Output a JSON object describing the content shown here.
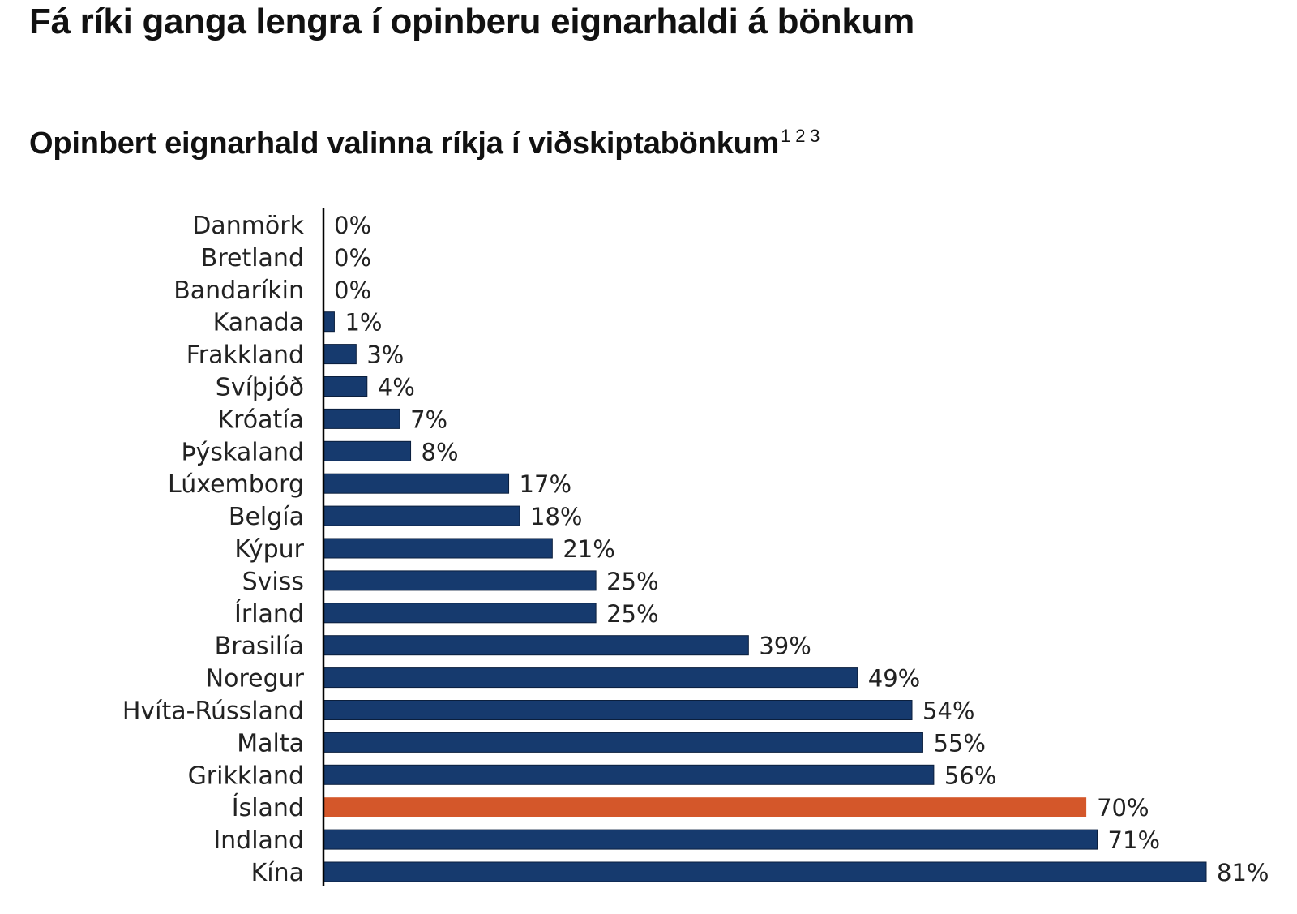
{
  "title": "Fá ríki ganga lengra í opinberu eignarhaldi á bönkum",
  "subtitle": "Opinbert eignarhald valinna ríkja í viðskiptabönkum",
  "subtitle_footnotes": "1 2 3",
  "colors": {
    "bar": "#163a6e",
    "highlight": "#d4572a",
    "axis": "#000000",
    "text": "#222222"
  },
  "chart_data": {
    "type": "bar",
    "orientation": "horizontal",
    "title": "Opinbert eignarhald valinna ríkja í viðskiptabönkum",
    "xlabel": "",
    "ylabel": "",
    "unit": "%",
    "xlim": [
      0,
      81
    ],
    "grid": false,
    "legend": "none",
    "highlight_category": "Ísland",
    "categories": [
      "Danmörk",
      "Bretland",
      "Bandaríkin",
      "Kanada",
      "Frakkland",
      "Svíþjóð",
      "Króatía",
      "Þýskaland",
      "Lúxemborg",
      "Belgía",
      "Kýpur",
      "Sviss",
      "Írland",
      "Brasilía",
      "Noregur",
      "Hvíta-Rússland",
      "Malta",
      "Grikkland",
      "Ísland",
      "Indland",
      "Kína"
    ],
    "values": [
      0,
      0,
      0,
      1,
      3,
      4,
      7,
      8,
      17,
      18,
      21,
      25,
      25,
      39,
      49,
      54,
      55,
      56,
      70,
      71,
      81
    ],
    "value_labels": [
      "0%",
      "0%",
      "0%",
      "1%",
      "3%",
      "4%",
      "7%",
      "8%",
      "17%",
      "18%",
      "21%",
      "25%",
      "25%",
      "39%",
      "49%",
      "54%",
      "55%",
      "56%",
      "70%",
      "71%",
      "81%"
    ]
  }
}
